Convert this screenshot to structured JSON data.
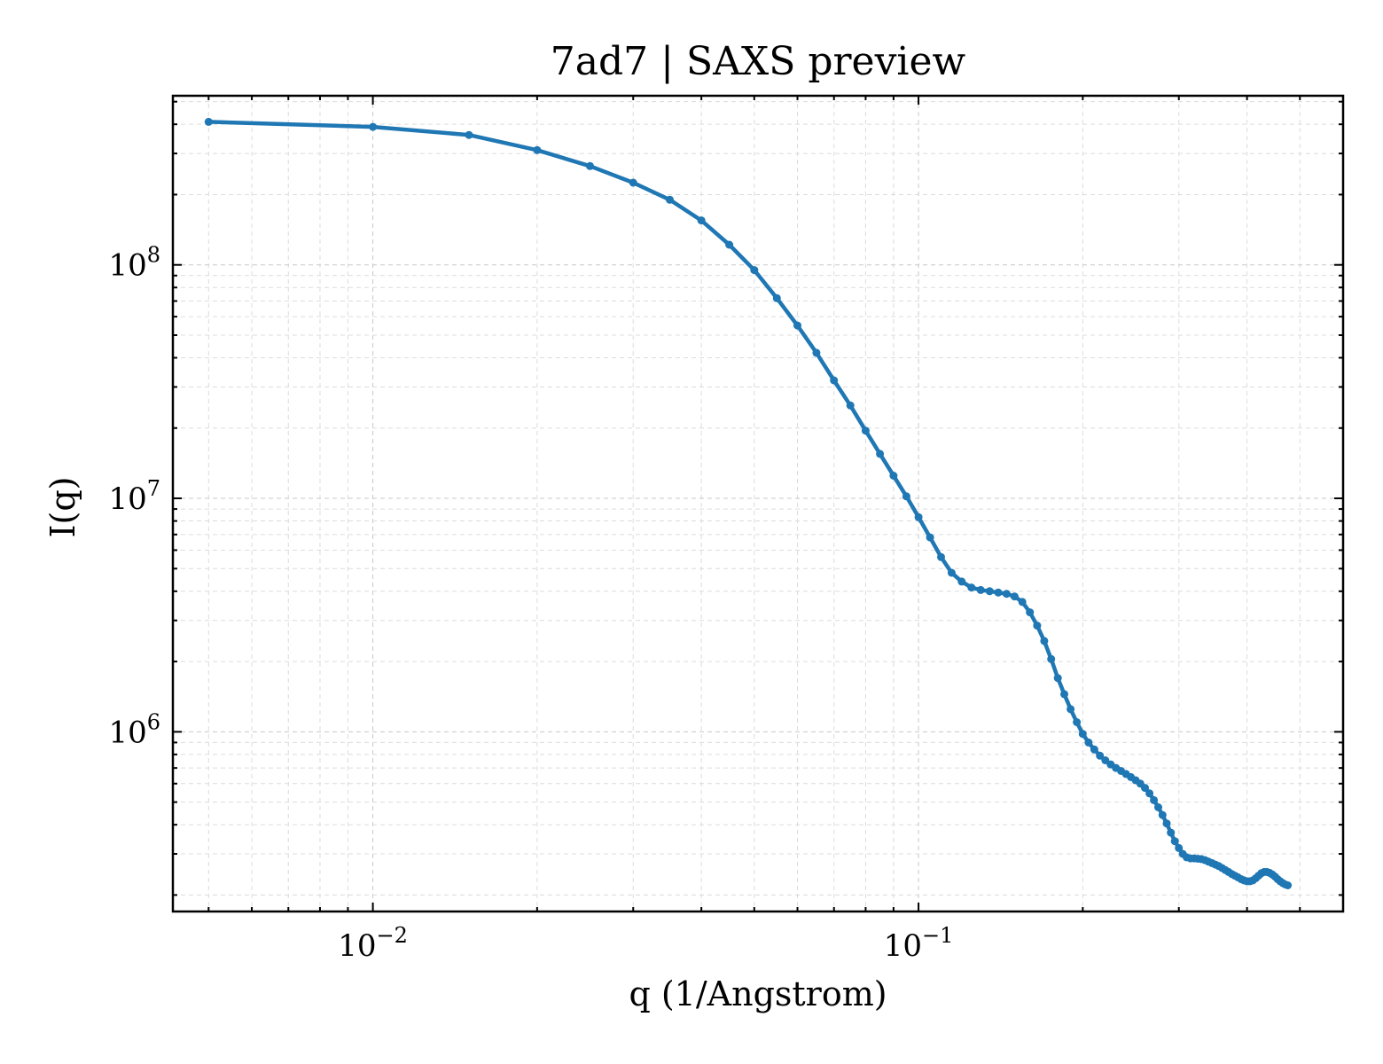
{
  "chart_data": {
    "type": "line",
    "title": "7ad7 | SAXS preview",
    "xlabel": "q (1/Angstrom)",
    "ylabel": "I(q)",
    "xscale": "log",
    "yscale": "log",
    "xlim": [
      0.0043,
      0.6
    ],
    "ylim": [
      170000,
      530000000
    ],
    "grid": true,
    "legend": "none",
    "x_ticks": [
      {
        "value": 0.01,
        "base": "10",
        "exp": "−2"
      },
      {
        "value": 0.1,
        "base": "10",
        "exp": "−1"
      }
    ],
    "y_ticks": [
      {
        "value": 1000000,
        "base": "10",
        "exp": "6"
      },
      {
        "value": 10000000,
        "base": "10",
        "exp": "7"
      },
      {
        "value": 100000000,
        "base": "10",
        "exp": "8"
      }
    ],
    "series": [
      {
        "color": "#1f77b4",
        "marker": "dot",
        "points": [
          [
            0.005,
            410000000
          ],
          [
            0.01,
            390000000
          ],
          [
            0.015,
            360000000
          ],
          [
            0.02,
            310000000
          ],
          [
            0.025,
            265000000
          ],
          [
            0.03,
            225000000
          ],
          [
            0.035,
            190000000
          ],
          [
            0.04,
            155000000
          ],
          [
            0.045,
            122000000
          ],
          [
            0.05,
            95000000
          ],
          [
            0.055,
            72000000
          ],
          [
            0.06,
            55000000
          ],
          [
            0.065,
            42000000
          ],
          [
            0.07,
            32000000
          ],
          [
            0.075,
            25000000
          ],
          [
            0.08,
            19500000
          ],
          [
            0.085,
            15500000
          ],
          [
            0.09,
            12500000
          ],
          [
            0.095,
            10200000
          ],
          [
            0.1,
            8300000
          ],
          [
            0.105,
            6800000
          ],
          [
            0.11,
            5600000
          ],
          [
            0.115,
            4800000
          ],
          [
            0.12,
            4400000
          ],
          [
            0.125,
            4150000
          ],
          [
            0.13,
            4050000
          ],
          [
            0.135,
            4000000
          ],
          [
            0.14,
            3950000
          ],
          [
            0.145,
            3900000
          ],
          [
            0.15,
            3800000
          ],
          [
            0.155,
            3600000
          ],
          [
            0.16,
            3250000
          ],
          [
            0.165,
            2850000
          ],
          [
            0.17,
            2450000
          ],
          [
            0.175,
            2050000
          ],
          [
            0.18,
            1700000
          ],
          [
            0.185,
            1450000
          ],
          [
            0.19,
            1250000
          ],
          [
            0.195,
            1100000
          ],
          [
            0.2,
            980000
          ],
          [
            0.205,
            900000
          ],
          [
            0.21,
            840000
          ],
          [
            0.215,
            790000
          ],
          [
            0.22,
            755000
          ],
          [
            0.225,
            725000
          ],
          [
            0.23,
            700000
          ],
          [
            0.235,
            680000
          ],
          [
            0.24,
            660000
          ],
          [
            0.245,
            640000
          ],
          [
            0.25,
            620000
          ],
          [
            0.255,
            600000
          ],
          [
            0.26,
            575000
          ],
          [
            0.265,
            545000
          ],
          [
            0.27,
            510000
          ],
          [
            0.275,
            475000
          ],
          [
            0.28,
            440000
          ],
          [
            0.285,
            405000
          ],
          [
            0.29,
            370000
          ],
          [
            0.295,
            340000
          ],
          [
            0.3,
            318000
          ],
          [
            0.305,
            300000
          ],
          [
            0.31,
            290000
          ],
          [
            0.315,
            287000
          ],
          [
            0.32,
            287000
          ],
          [
            0.325,
            286000
          ],
          [
            0.33,
            285000
          ],
          [
            0.335,
            282000
          ],
          [
            0.34,
            278000
          ],
          [
            0.345,
            274000
          ],
          [
            0.35,
            270000
          ],
          [
            0.355,
            266000
          ],
          [
            0.36,
            261000
          ],
          [
            0.365,
            256000
          ],
          [
            0.37,
            251000
          ],
          [
            0.375,
            246000
          ],
          [
            0.38,
            242000
          ],
          [
            0.385,
            238000
          ],
          [
            0.39,
            234000
          ],
          [
            0.395,
            231000
          ],
          [
            0.4,
            229000
          ],
          [
            0.405,
            229000
          ],
          [
            0.41,
            231000
          ],
          [
            0.415,
            236000
          ],
          [
            0.42,
            242000
          ],
          [
            0.425,
            248000
          ],
          [
            0.43,
            251000
          ],
          [
            0.435,
            251000
          ],
          [
            0.44,
            249000
          ],
          [
            0.445,
            245000
          ],
          [
            0.45,
            240000
          ],
          [
            0.455,
            234000
          ],
          [
            0.46,
            229000
          ],
          [
            0.465,
            225000
          ],
          [
            0.47,
            222000
          ],
          [
            0.475,
            220000
          ]
        ]
      }
    ]
  }
}
